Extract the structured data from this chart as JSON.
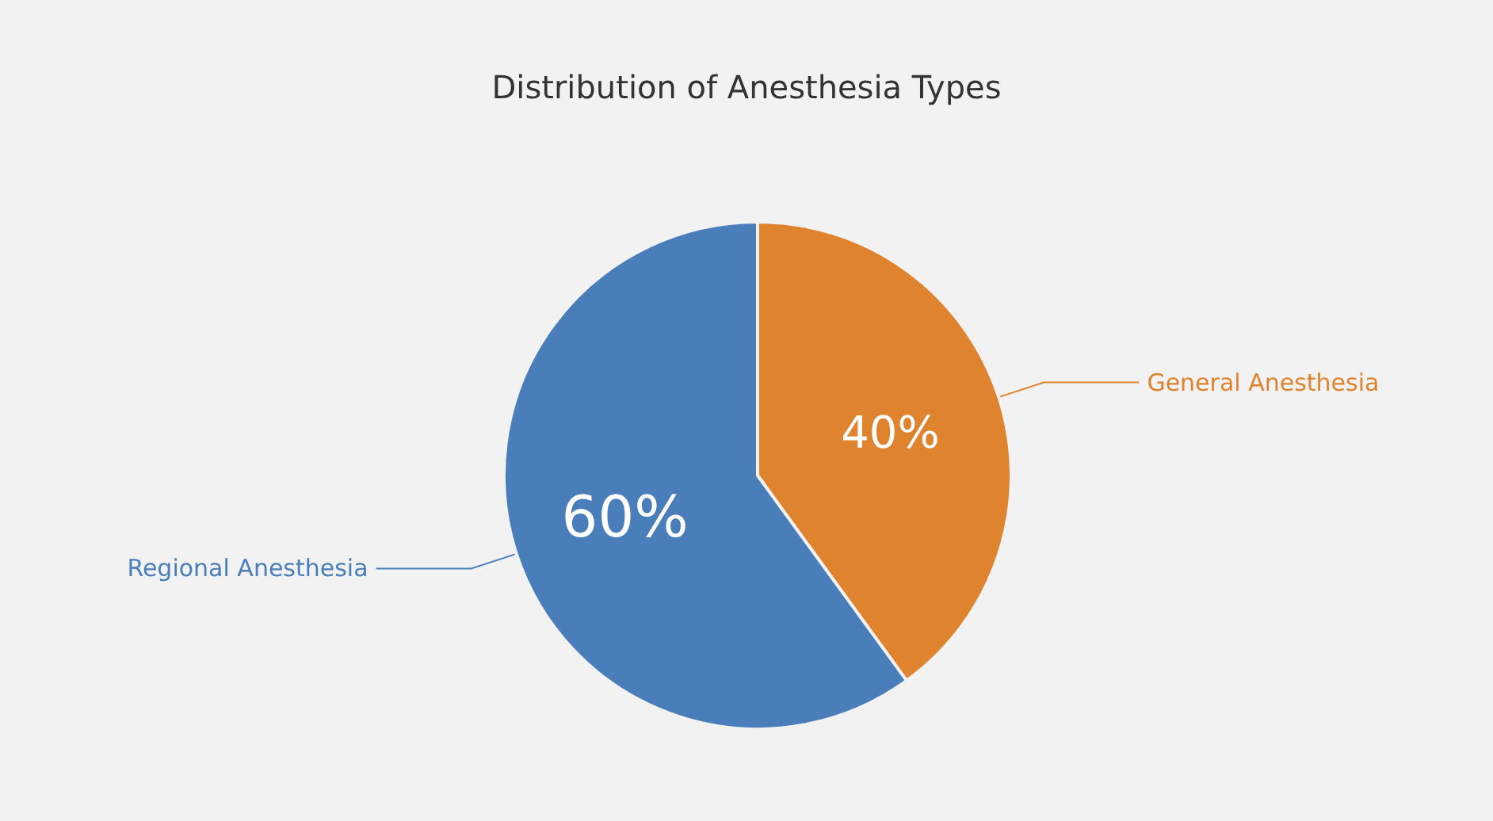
{
  "chart_data": {
    "type": "pie",
    "title": "Distribution of Anesthesia Types",
    "categories": [
      "General Anesthesia",
      "Regional Anesthesia"
    ],
    "values": [
      40,
      60
    ],
    "colors": [
      "#e0832f",
      "#4a7ebb"
    ],
    "value_labels": [
      "40%",
      "60%"
    ],
    "legend": false
  }
}
